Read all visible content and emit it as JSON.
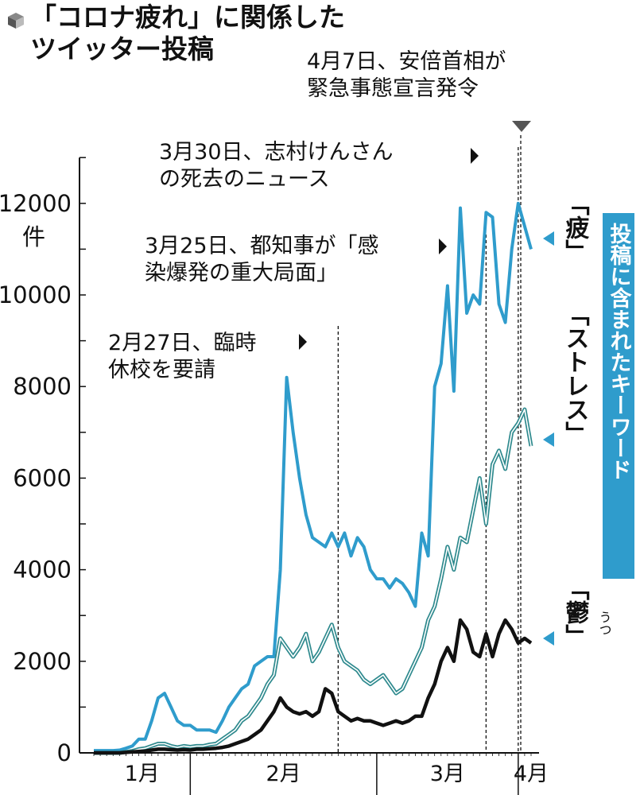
{
  "title": {
    "line1": "「コロナ疲れ」に関係した",
    "line2": "ツイッター投稿"
  },
  "keyword_box": {
    "text": "投稿に含まれたキーワード",
    "color": "#2f9ccc"
  },
  "icons": [
    "cube-icon",
    "triangle-pointer-icon"
  ],
  "chart_data": {
    "type": "line",
    "ylabel": "件",
    "ylim": [
      0,
      13000
    ],
    "yticks": [
      0,
      2000,
      4000,
      6000,
      8000,
      10000,
      12000
    ],
    "ytick_labels": [
      "0",
      "2000",
      "4000",
      "6000",
      "8000",
      "10000",
      "12000"
    ],
    "x_count": 69,
    "months": [
      {
        "label": "1月",
        "start": 0,
        "end": 15
      },
      {
        "label": "2月",
        "start": 15,
        "end": 44
      },
      {
        "label": "3月",
        "start": 44,
        "end": 66
      },
      {
        "label": "4月",
        "start": 66,
        "end": 68
      }
    ],
    "annotations": [
      {
        "lines": [
          "2月27日、臨時",
          "休校を要請"
        ],
        "x_index": 38
      },
      {
        "lines": [
          "3月25日、都知事が「感",
          "染爆発の重大局面」"
        ],
        "x_index": 61
      },
      {
        "lines": [
          "3月30日、志村けんさん",
          "の死去のニュース"
        ],
        "x_index": 66
      },
      {
        "lines": [
          "4月7日、安倍首相が",
          "緊急事態宣言発令"
        ],
        "x_index": 73
      }
    ],
    "series": [
      {
        "name": "疲",
        "label": "「疲」",
        "color": "#2f9ccc",
        "values": [
          50,
          50,
          50,
          50,
          60,
          100,
          150,
          300,
          300,
          700,
          1200,
          1300,
          1000,
          700,
          600,
          600,
          500,
          500,
          500,
          450,
          700,
          1000,
          1200,
          1400,
          1500,
          1900,
          2000,
          2100,
          2100,
          4000,
          8200,
          7000,
          6000,
          5200,
          4700,
          4600,
          4500,
          4800,
          4500,
          4800,
          4300,
          4700,
          4500,
          4000,
          3800,
          3800,
          3600,
          3800,
          3700,
          3500,
          3200,
          4800,
          4300,
          8000,
          8500,
          10200,
          7900,
          11900,
          9600,
          10000,
          9800,
          11800,
          11700,
          9800,
          9400,
          11000,
          12000,
          11500,
          11000
        ]
      },
      {
        "name": "ストレス",
        "label": "「ストレス」",
        "color": "#2f8a8e",
        "values": [
          0,
          0,
          0,
          0,
          0,
          20,
          40,
          80,
          100,
          150,
          200,
          200,
          150,
          120,
          150,
          130,
          150,
          150,
          180,
          200,
          300,
          400,
          500,
          700,
          800,
          1000,
          1200,
          1500,
          1700,
          2500,
          2300,
          2100,
          2300,
          2600,
          2000,
          2200,
          2500,
          2800,
          2300,
          2000,
          1900,
          1800,
          1600,
          1500,
          1600,
          1700,
          1500,
          1300,
          1400,
          1700,
          2000,
          2300,
          2900,
          3200,
          3800,
          4500,
          4000,
          4700,
          4600,
          5300,
          6000,
          5000,
          6300,
          6600,
          6200,
          7000,
          7200,
          7500,
          6700
        ]
      },
      {
        "name": "鬱",
        "label": "「鬱」",
        "ruby": "うつ",
        "color": "#111111",
        "values": [
          0,
          0,
          0,
          0,
          0,
          10,
          20,
          30,
          40,
          60,
          80,
          80,
          70,
          60,
          70,
          60,
          80,
          80,
          90,
          100,
          120,
          150,
          200,
          250,
          300,
          400,
          500,
          700,
          900,
          1200,
          1000,
          900,
          850,
          900,
          800,
          900,
          1400,
          1300,
          900,
          800,
          700,
          750,
          700,
          700,
          650,
          600,
          650,
          700,
          650,
          700,
          800,
          800,
          1200,
          1500,
          2000,
          2300,
          2000,
          2900,
          2700,
          2200,
          2100,
          2600,
          2100,
          2600,
          2900,
          2700,
          2400,
          2500,
          2400
        ]
      }
    ]
  }
}
